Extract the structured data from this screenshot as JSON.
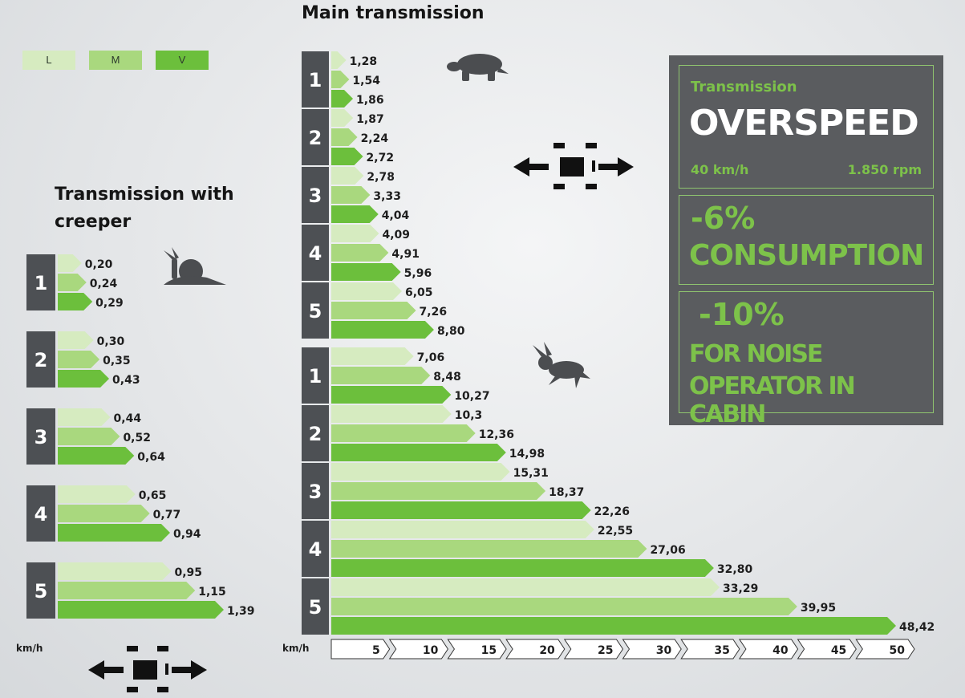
{
  "titles": {
    "main": "Main transmission",
    "creeper": "Transmission with creeper"
  },
  "legend": [
    {
      "label": "L",
      "color": "#d6ebc0"
    },
    {
      "label": "M",
      "color": "#a9d87e"
    },
    {
      "label": "V",
      "color": "#6cbf3c"
    }
  ],
  "unit_label": "km/h",
  "info": {
    "subtitle": "Transmission",
    "headline": "OVERSPEED",
    "speed": "40 km/h",
    "rpm": "1.850 rpm",
    "consumption_value": "-6%",
    "consumption_label": "CONSUMPTION",
    "noise_value": "-10%",
    "noise_label_1": "FOR NOISE",
    "noise_label_2": "OPERATOR IN CABIN"
  },
  "icons": {
    "turtle": "turtle-icon",
    "hare": "hare-icon",
    "snail": "snail-icon",
    "direction": "forward-reverse-icon"
  },
  "chart_data": [
    {
      "type": "bar",
      "title": "Main transmission",
      "xlabel": "km/h",
      "xlim": [
        0,
        50
      ],
      "xticks": [
        "5",
        "10",
        "15",
        "20",
        "25",
        "30",
        "35",
        "40",
        "45",
        "50"
      ],
      "legend": [
        "L",
        "M",
        "V"
      ],
      "groups": [
        {
          "range": "low",
          "gears": [
            {
              "gear": "1",
              "values": [
                1.28,
                1.54,
                1.86
              ],
              "labels": [
                "1,28",
                "1,54",
                "1,86"
              ]
            },
            {
              "gear": "2",
              "values": [
                1.87,
                2.24,
                2.72
              ],
              "labels": [
                "1,87",
                "2,24",
                "2,72"
              ]
            },
            {
              "gear": "3",
              "values": [
                2.78,
                3.33,
                4.04
              ],
              "labels": [
                "2,78",
                "3,33",
                "4,04"
              ]
            },
            {
              "gear": "4",
              "values": [
                4.09,
                4.91,
                5.96
              ],
              "labels": [
                "4,09",
                "4,91",
                "5,96"
              ]
            },
            {
              "gear": "5",
              "values": [
                6.05,
                7.26,
                8.8
              ],
              "labels": [
                "6,05",
                "7,26",
                "8,80"
              ]
            }
          ]
        },
        {
          "range": "high",
          "gears": [
            {
              "gear": "1",
              "values": [
                7.06,
                8.48,
                10.27
              ],
              "labels": [
                "7,06",
                "8,48",
                "10,27"
              ]
            },
            {
              "gear": "2",
              "values": [
                10.3,
                12.36,
                14.98
              ],
              "labels": [
                "10,3",
                "12,36",
                "14,98"
              ]
            },
            {
              "gear": "3",
              "values": [
                15.31,
                18.37,
                22.26
              ],
              "labels": [
                "15,31",
                "18,37",
                "22,26"
              ]
            },
            {
              "gear": "4",
              "values": [
                22.55,
                27.06,
                32.8
              ],
              "labels": [
                "22,55",
                "27,06",
                "32,80"
              ]
            },
            {
              "gear": "5",
              "values": [
                33.29,
                39.95,
                48.42
              ],
              "labels": [
                "33,29",
                "39,95",
                "48,42"
              ]
            }
          ]
        }
      ]
    },
    {
      "type": "bar",
      "title": "Transmission with creeper",
      "xlabel": "km/h",
      "legend": [
        "L",
        "M",
        "V"
      ],
      "gears": [
        {
          "gear": "1",
          "values": [
            0.2,
            0.24,
            0.29
          ],
          "labels": [
            "0,20",
            "0,24",
            "0,29"
          ]
        },
        {
          "gear": "2",
          "values": [
            0.3,
            0.35,
            0.43
          ],
          "labels": [
            "0,30",
            "0,35",
            "0,43"
          ]
        },
        {
          "gear": "3",
          "values": [
            0.44,
            0.52,
            0.64
          ],
          "labels": [
            "0,44",
            "0,52",
            "0,64"
          ]
        },
        {
          "gear": "4",
          "values": [
            0.65,
            0.77,
            0.94
          ],
          "labels": [
            "0,65",
            "0,77",
            "0,94"
          ]
        },
        {
          "gear": "5",
          "values": [
            0.95,
            1.15,
            1.39
          ],
          "labels": [
            "0,95",
            "1,15",
            "1,39"
          ]
        }
      ]
    }
  ]
}
